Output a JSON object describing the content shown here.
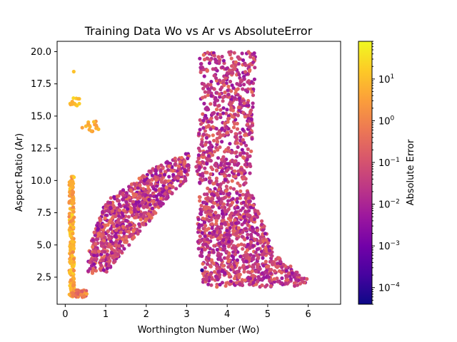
{
  "chart_data": {
    "type": "scatter",
    "title": "Training Data Wo vs Ar vs AbsoluteError",
    "xlabel": "Worthington Number (Wo)",
    "ylabel": "Aspect Ratio (Ar)",
    "xlim": [
      -0.2,
      6.8
    ],
    "ylim": [
      0.4,
      20.8
    ],
    "xticks": [
      0,
      1,
      2,
      3,
      4,
      5,
      6
    ],
    "xtick_labels": [
      "0",
      "1",
      "2",
      "3",
      "4",
      "5",
      "6"
    ],
    "yticks": [
      2.5,
      5.0,
      7.5,
      10.0,
      12.5,
      15.0,
      17.5,
      20.0
    ],
    "ytick_labels": [
      "2.5",
      "5.0",
      "7.5",
      "10.0",
      "12.5",
      "15.0",
      "17.5",
      "20.0"
    ],
    "grid": false,
    "colormap": "plasma",
    "colorbar": {
      "label": "Absolute Error",
      "scale": "log",
      "range": [
        4e-05,
        80
      ],
      "ticks": [
        0.0001,
        0.001,
        0.01,
        0.1,
        1,
        10
      ],
      "tick_labels": [
        {
          "base": "10",
          "exp": "−4"
        },
        {
          "base": "10",
          "exp": "−3"
        },
        {
          "base": "10",
          "exp": "−2"
        },
        {
          "base": "10",
          "exp": "−1"
        },
        {
          "base": "10",
          "exp": "0"
        },
        {
          "base": "10",
          "exp": "1"
        }
      ]
    },
    "regions": [
      {
        "name": "left-strip",
        "polygon": [
          [
            0.1,
            1.0
          ],
          [
            0.22,
            1.0
          ],
          [
            0.22,
            10.4
          ],
          [
            0.1,
            10.4
          ]
        ],
        "error_log10": [
          0.0,
          1.5
        ],
        "count": 220
      },
      {
        "name": "bottom-tail",
        "polygon": [
          [
            0.18,
            0.95
          ],
          [
            0.55,
            0.95
          ],
          [
            0.55,
            1.5
          ],
          [
            0.18,
            1.5
          ]
        ],
        "error_log10": [
          -1.2,
          0.6
        ],
        "count": 45
      },
      {
        "name": "left-upper-cluster",
        "polygon": [
          [
            0.12,
            15.8
          ],
          [
            0.35,
            15.8
          ],
          [
            0.35,
            16.4
          ],
          [
            0.12,
            16.4
          ]
        ],
        "error_log10": [
          0.6,
          1.4
        ],
        "count": 14
      },
      {
        "name": "mid-upper-cluster",
        "polygon": [
          [
            0.5,
            13.8
          ],
          [
            0.85,
            13.8
          ],
          [
            0.85,
            14.6
          ],
          [
            0.5,
            14.6
          ]
        ],
        "error_log10": [
          0.3,
          1.0
        ],
        "count": 16
      },
      {
        "name": "middle-band",
        "polygon": [
          [
            0.55,
            2.8
          ],
          [
            1.0,
            2.8
          ],
          [
            2.6,
            8.8
          ],
          [
            3.05,
            10.2
          ],
          [
            3.05,
            12.2
          ],
          [
            2.2,
            11.0
          ],
          [
            1.0,
            8.4
          ],
          [
            0.6,
            5.0
          ]
        ],
        "error_log10": [
          -2.6,
          -0.2
        ],
        "count": 900
      },
      {
        "name": "upper-right-block",
        "polygon": [
          [
            3.2,
            10.0
          ],
          [
            3.35,
            15.5
          ],
          [
            3.3,
            20.0
          ],
          [
            4.7,
            20.0
          ],
          [
            4.6,
            12.0
          ],
          [
            4.55,
            9.0
          ],
          [
            3.6,
            9.0
          ]
        ],
        "error_log10": [
          -2.5,
          -0.4
        ],
        "count": 650
      },
      {
        "name": "lower-right-block",
        "polygon": [
          [
            3.3,
            9.0
          ],
          [
            4.6,
            9.0
          ],
          [
            5.2,
            4.2
          ],
          [
            6.0,
            2.3
          ],
          [
            5.9,
            1.8
          ],
          [
            3.8,
            1.7
          ],
          [
            3.4,
            2.0
          ],
          [
            3.25,
            5.5
          ]
        ],
        "error_log10": [
          -2.5,
          -0.4
        ],
        "count": 900
      }
    ],
    "points": [
      {
        "x": 0.21,
        "y": 18.45,
        "error": 12
      },
      {
        "x": 3.38,
        "y": 3.05,
        "error": 0.0001
      },
      {
        "x": 0.42,
        "y": 14.1,
        "error": 3.5
      }
    ]
  }
}
